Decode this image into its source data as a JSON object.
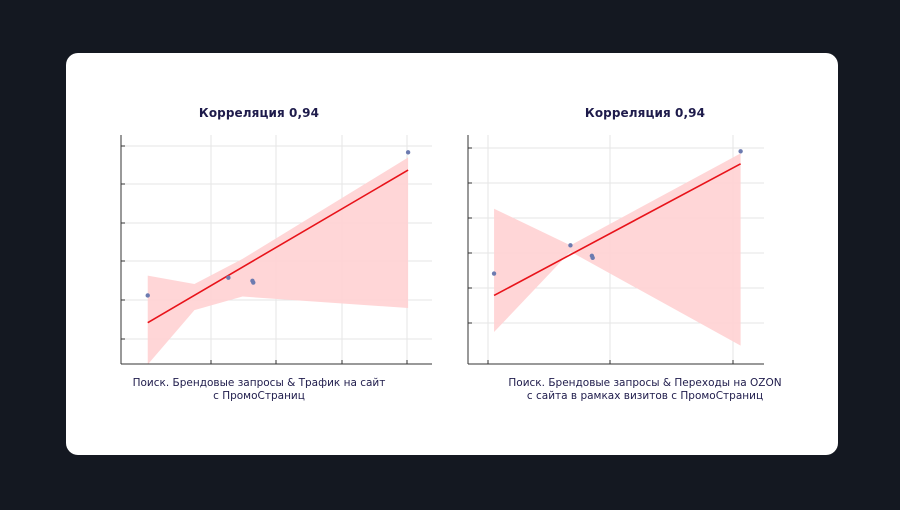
{
  "colors": {
    "background": "#141821",
    "card": "#ffffff",
    "text": "#1e1b4b",
    "regression_line": "#e8131a",
    "confidence_band": "#ffd1d3",
    "points": "#6c7bb0",
    "grid": "#e6e6e6",
    "axis": "#333333"
  },
  "chart_data": [
    {
      "type": "scatter",
      "title": "Корреляция 0,94",
      "caption": [
        "Поиск. Брендовые запросы & Трафик на сайт",
        "с ПромоСтраниц"
      ],
      "xlabel": "",
      "ylabel": "",
      "xlim": [
        0,
        100
      ],
      "ylim": [
        0,
        100
      ],
      "grid": true,
      "points": [
        {
          "x": 4.5,
          "y": 28
        },
        {
          "x": 33,
          "y": 36.5
        },
        {
          "x": 41.5,
          "y": 35
        },
        {
          "x": 41.8,
          "y": 34.2
        },
        {
          "x": 96.5,
          "y": 96.5
        }
      ],
      "fit": {
        "x": [
          4.5,
          96.5
        ],
        "y": [
          15,
          88
        ]
      },
      "band": {
        "upper": [
          {
            "x": 4.5,
            "y": 37.5
          },
          {
            "x": 21,
            "y": 33.5
          },
          {
            "x": 38,
            "y": 45.5
          },
          {
            "x": 96.5,
            "y": 94
          }
        ],
        "lower": [
          {
            "x": 4.5,
            "y": -5
          },
          {
            "x": 21,
            "y": 21
          },
          {
            "x": 38,
            "y": 27.5
          },
          {
            "x": 96.5,
            "y": 22
          }
        ]
      }
    },
    {
      "type": "scatter",
      "title": "Корреляция 0,94",
      "caption": [
        "Поиск. Брендовые запросы & Переходы на OZON",
        "с сайта в рамках визитов с ПромоСтраниц"
      ],
      "xlabel": "",
      "ylabel": "",
      "xlim": [
        0,
        100
      ],
      "ylim": [
        0,
        100
      ],
      "grid": true,
      "points": [
        {
          "x": 4.5,
          "y": 38.5
        },
        {
          "x": 33,
          "y": 52
        },
        {
          "x": 41,
          "y": 47
        },
        {
          "x": 41.3,
          "y": 46
        },
        {
          "x": 96.5,
          "y": 97
        }
      ],
      "fit": {
        "x": [
          4.5,
          96.5
        ],
        "y": [
          28,
          91
        ]
      },
      "band": {
        "upper": [
          {
            "x": 4.5,
            "y": 69.5
          },
          {
            "x": 33,
            "y": 52
          },
          {
            "x": 96.5,
            "y": 96
          }
        ],
        "lower": [
          {
            "x": 4.5,
            "y": 10.5
          },
          {
            "x": 33,
            "y": 49
          },
          {
            "x": 96.5,
            "y": 4
          }
        ]
      }
    }
  ]
}
